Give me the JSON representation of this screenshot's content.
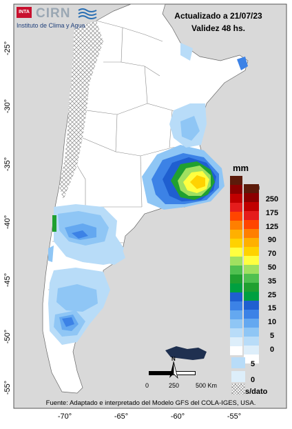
{
  "logo": {
    "inta": "INTA",
    "cirn": "CIRN",
    "subtitle": "Instituto de Clima y Agua"
  },
  "header": {
    "updated": "Actualizado a 21/07/23",
    "validity": "Validez 48 hs."
  },
  "axes": {
    "lat_ticks": [
      "-25°",
      "-30°",
      "-35°",
      "-40°",
      "-45°",
      "-50°",
      "-55°"
    ],
    "lon_ticks": [
      "-70°",
      "-65°",
      "-60°",
      "-55°"
    ]
  },
  "legend_main": {
    "unit": "mm",
    "unit2": "mm",
    "values": [
      "250",
      "175",
      "125",
      "90",
      "70",
      "50",
      "35",
      "25",
      "15",
      "10",
      "5",
      "0"
    ],
    "colors": [
      "#5c1a0a",
      "#8b0000",
      "#c00000",
      "#e51c1c",
      "#ff4500",
      "#ff7f00",
      "#ffb000",
      "#ffd200",
      "#ffff40",
      "#a0e060",
      "#50c050",
      "#20a030",
      "#00a040",
      "#1f5fd0",
      "#3c82e6",
      "#64a8f0",
      "#8fc6f5",
      "#b8dcf8",
      "#ddeefa",
      "#ffffff"
    ]
  },
  "legend_small": {
    "values": [
      "5",
      "0",
      "s/dato"
    ],
    "colors": [
      "#b8dcf8",
      "#ddeefa",
      "#ffffff"
    ]
  },
  "scalebar": {
    "labels": [
      "0",
      "250",
      "500 Km"
    ]
  },
  "north": {
    "label": "N"
  },
  "footer": "Fuente: Adaptado e interpretado del Modelo GFS del COLA-IGES, USA."
}
